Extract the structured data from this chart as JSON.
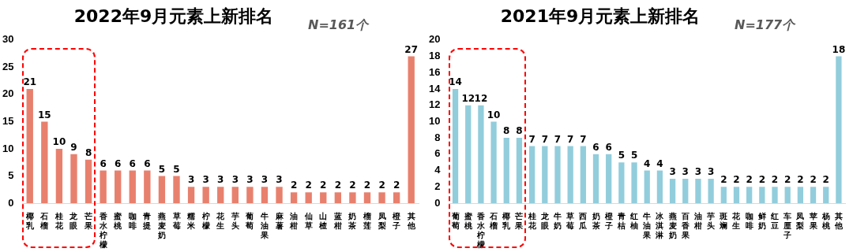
{
  "chart_data": [
    {
      "type": "bar",
      "title": "2022年9月元素上新排名",
      "annotations": [
        "N=161个"
      ],
      "categories": [
        "椰乳",
        "石榴",
        "桂花",
        "龙眼",
        "芒果",
        "香水柠檬",
        "蜜桃",
        "咖啡",
        "青提",
        "燕麦奶",
        "草莓",
        "糯米",
        "柠檬",
        "花生",
        "芋头",
        "葡萄",
        "牛油果",
        "麻薯",
        "油柑",
        "仙草",
        "山楂",
        "蓝柑",
        "奶茶",
        "榴莲",
        "凤梨",
        "橙子",
        "其他"
      ],
      "values": [
        21,
        15,
        10,
        9,
        8,
        6,
        6,
        6,
        6,
        5,
        5,
        3,
        3,
        3,
        3,
        3,
        3,
        3,
        2,
        2,
        2,
        2,
        2,
        2,
        2,
        2,
        27
      ],
      "color": "#e8806e",
      "ylim": [
        0,
        30
      ],
      "yticks": [
        0,
        5,
        10,
        15,
        20,
        25,
        30
      ],
      "data_labels": true
    },
    {
      "type": "bar",
      "title": "2021年9月元素上新排名",
      "annotations": [
        "N=177个"
      ],
      "categories": [
        "葡萄",
        "蜜桃",
        "香水柠檬",
        "石榴",
        "椰乳",
        "芒果",
        "桂花",
        "龙眼",
        "牛奶",
        "草莓",
        "西瓜",
        "奶茶",
        "橙子",
        "青桔",
        "红柚",
        "牛油果",
        "冰淇淋",
        "燕麦奶",
        "百香果",
        "油柑",
        "芋头",
        "斑斓",
        "花生",
        "咖啡",
        "鲜奶",
        "红豆",
        "车厘子",
        "凤梨",
        "苹果",
        "杨桃",
        "其他"
      ],
      "values": [
        14,
        12,
        12,
        10,
        8,
        8,
        7,
        7,
        7,
        7,
        7,
        6,
        6,
        5,
        5,
        4,
        4,
        3,
        3,
        3,
        3,
        2,
        2,
        2,
        2,
        2,
        2,
        2,
        2,
        2,
        18
      ],
      "color": "#92cddc",
      "ylim": [
        0,
        20
      ],
      "yticks": [
        0,
        2,
        4,
        6,
        8,
        10,
        12,
        14,
        16,
        18,
        20
      ],
      "data_labels": true
    }
  ]
}
